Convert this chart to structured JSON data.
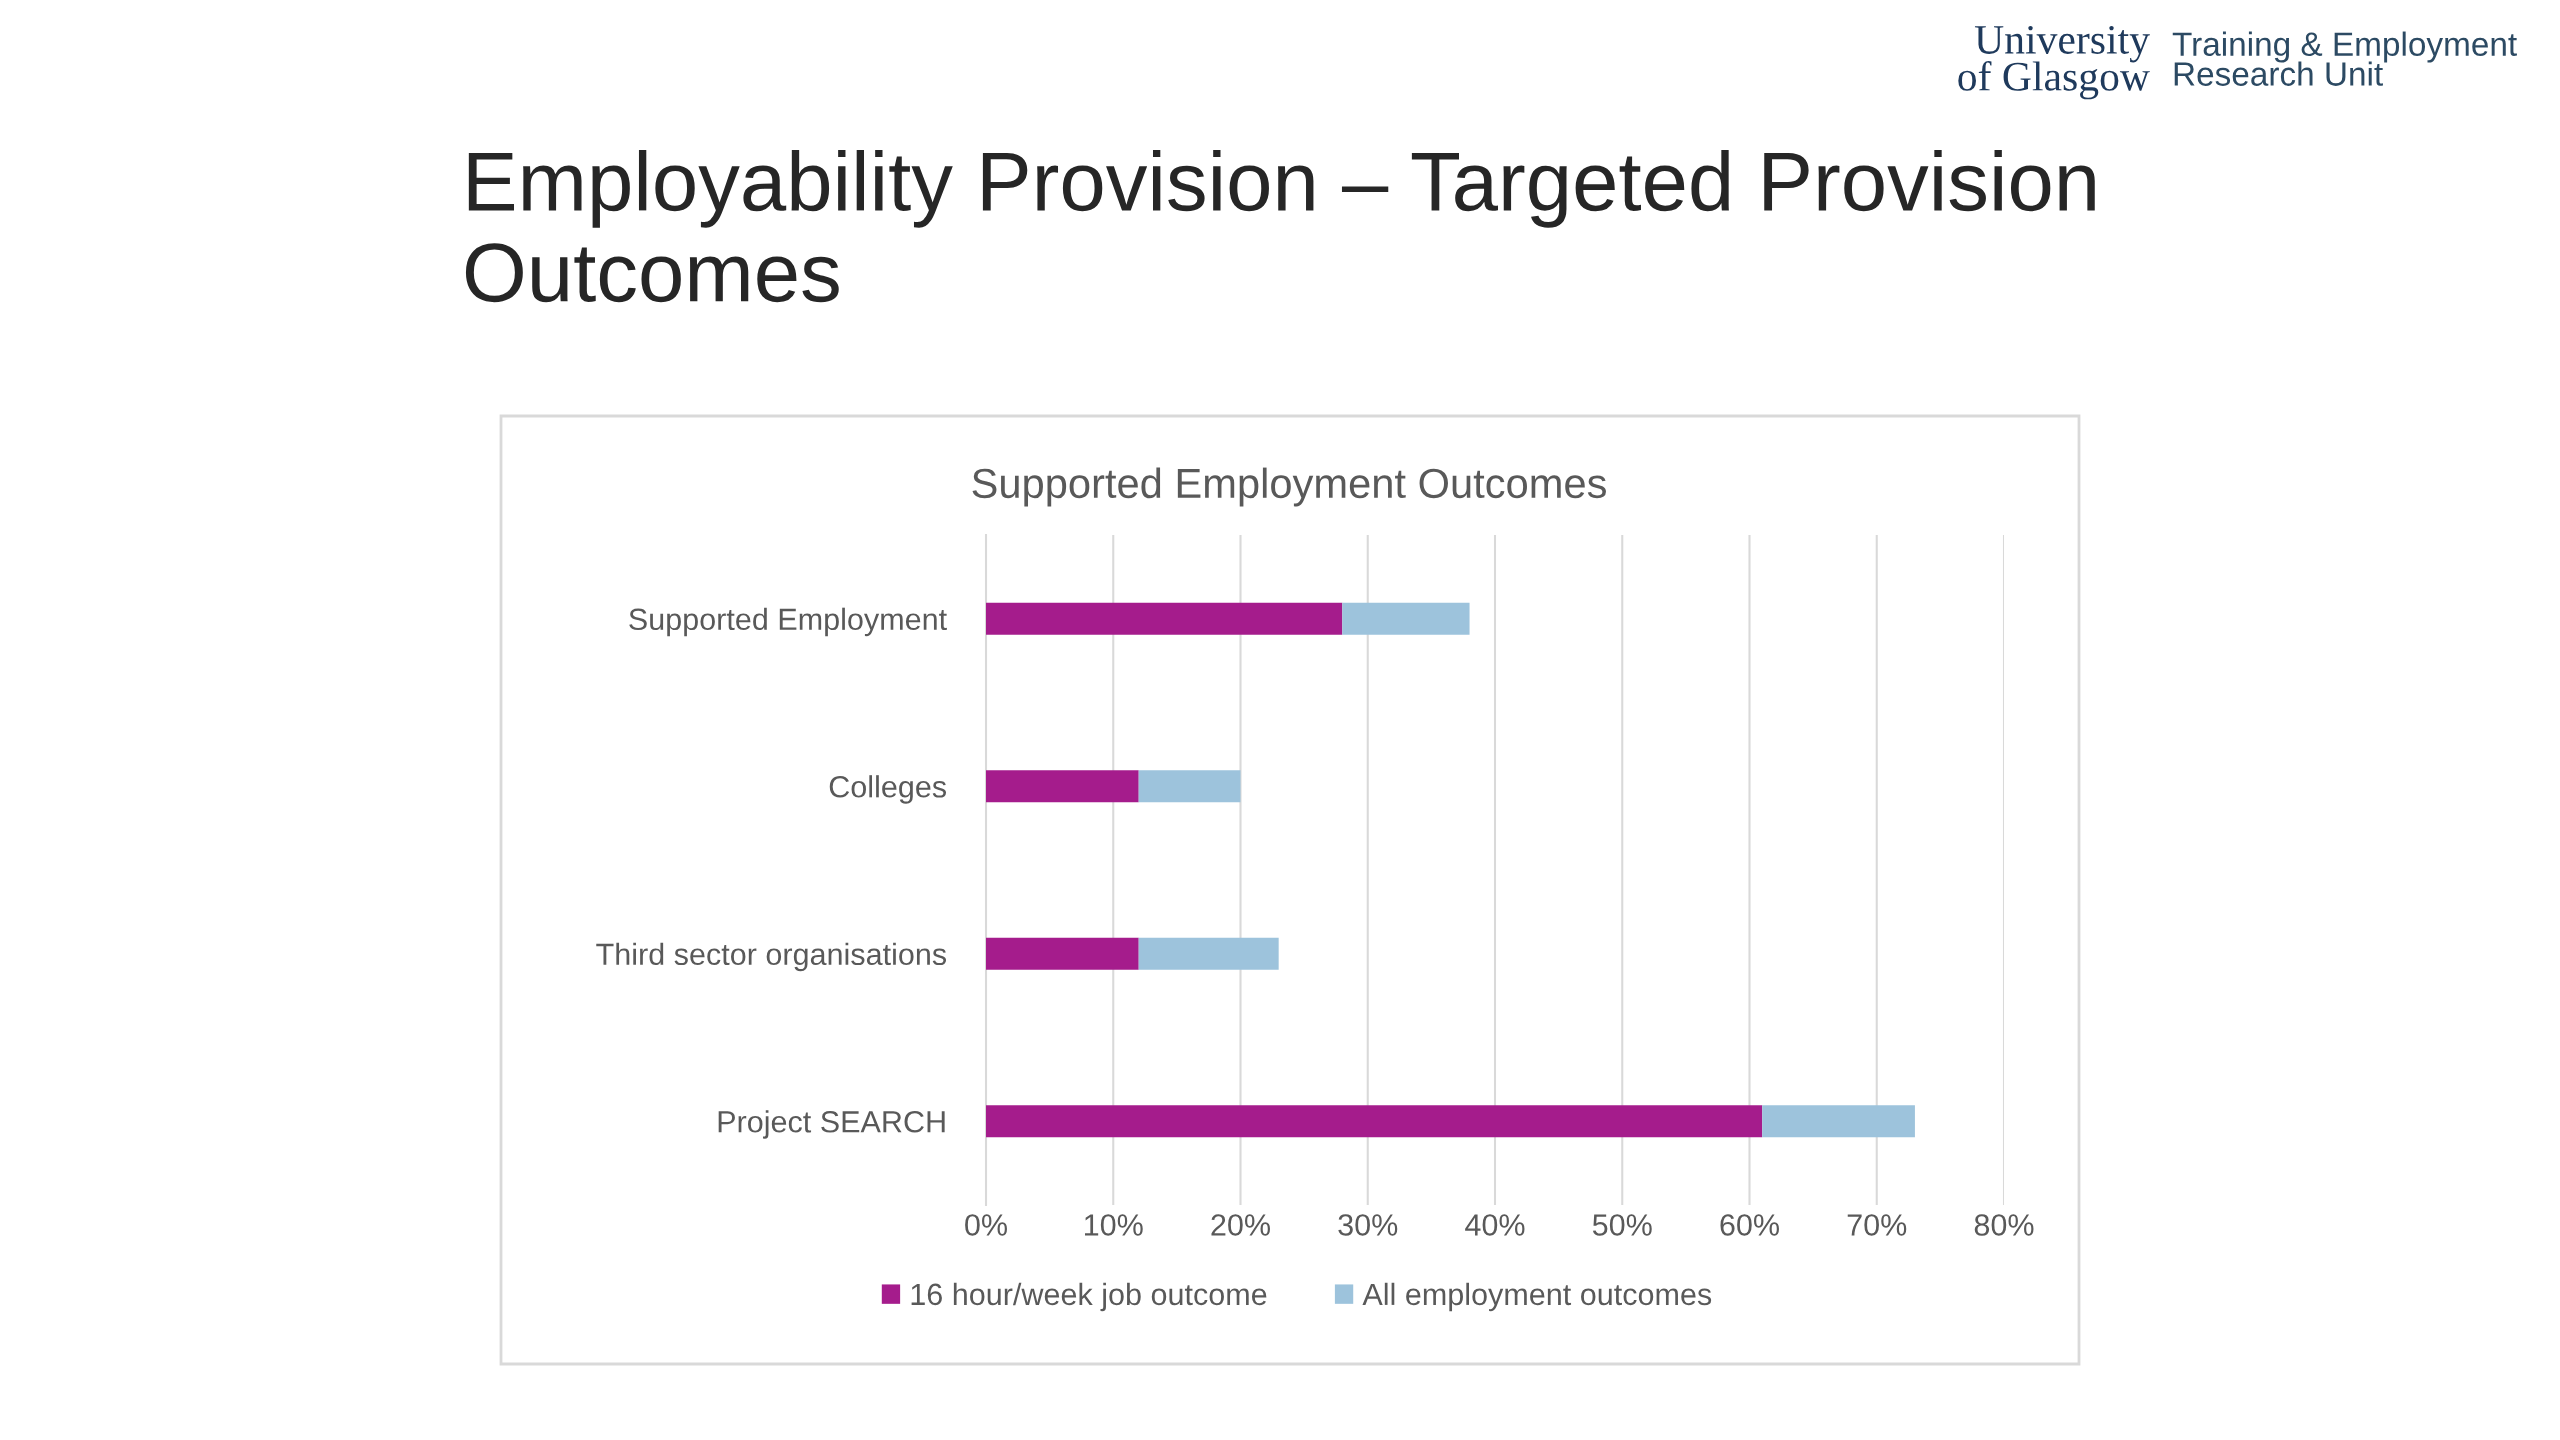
{
  "chart_data": {
    "type": "bar",
    "orientation": "horizontal",
    "stacked": true,
    "title": "Employability Provision – Targeted Provision\nOutcomes",
    "subtitle": "Supported Employment Outcomes",
    "annotations": [
      "University\nof Glasgow",
      "Training & Employment\nResearch Unit"
    ],
    "categories": [
      "Supported Employment",
      "Colleges",
      "Third sector organisations",
      "Project SEARCH"
    ],
    "series": [
      {
        "name": "16 hour/week job outcome",
        "color": "#a51c8c",
        "values": [
          28,
          12,
          12,
          61
        ]
      },
      {
        "name": "All employment outcomes",
        "color": "#9dc3dc",
        "values": [
          10,
          8,
          11,
          12
        ]
      }
    ],
    "xlim": [
      0,
      80
    ],
    "xticks": [
      {
        "value": 0,
        "label": "0%"
      },
      {
        "value": 10,
        "label": "10%"
      },
      {
        "value": 20,
        "label": "20%"
      },
      {
        "value": 30,
        "label": "30%"
      },
      {
        "value": 40,
        "label": "40%"
      },
      {
        "value": 50,
        "label": "50%"
      },
      {
        "value": 60,
        "label": "60%"
      },
      {
        "value": 70,
        "label": "70%"
      },
      {
        "value": 80,
        "label": "80%"
      }
    ],
    "grid": "x",
    "legend": "bottom"
  }
}
